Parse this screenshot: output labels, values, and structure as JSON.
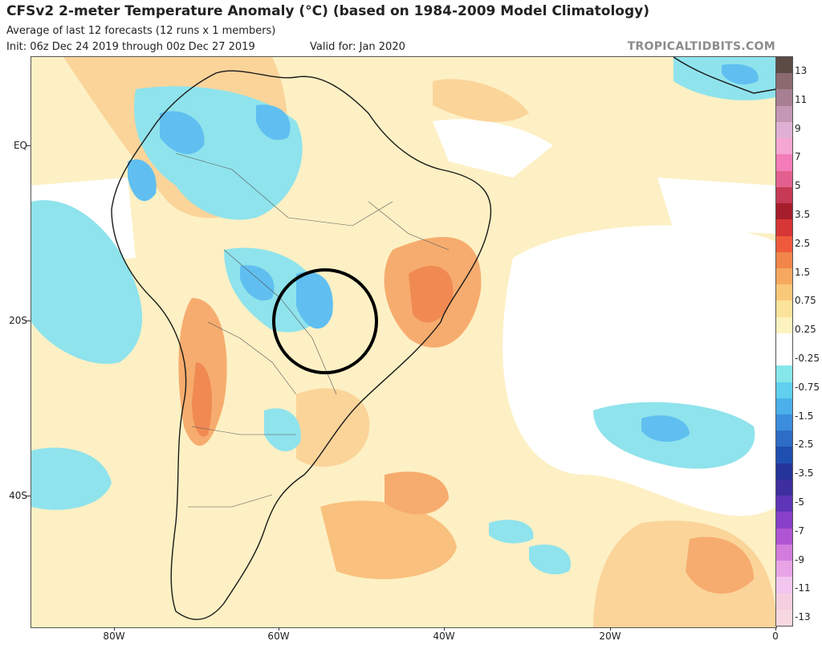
{
  "header": {
    "title": "CFSv2 2-meter Temperature Anomaly (°C) (based on 1984-2009 Model Climatology)",
    "subtitle": "Average of last 12 forecasts (12 runs x 1 members)",
    "init": "Init: 06z Dec 24 2019 through 00z Dec 27 2019",
    "valid": "Valid for: Jan 2020",
    "credit": "TROPICALTIDBITS.COM"
  },
  "map": {
    "lat_labels": [
      "EQ",
      "20S",
      "40S"
    ],
    "lon_labels": [
      "80W",
      "60W",
      "40W",
      "20W",
      "0"
    ],
    "highlight": "circle-around-paraguay-mato-grosso-do-sul"
  },
  "colorbar": {
    "labels": [
      "13",
      "11",
      "9",
      "7",
      "5",
      "3.5",
      "2.5",
      "1.5",
      "0.75",
      "0.25",
      "-0.25",
      "-0.75",
      "-1.5",
      "-2.5",
      "-3.5",
      "-5",
      "-7",
      "-9",
      "-11",
      "-13"
    ],
    "colors": [
      "#5c4a45",
      "#8a6a6e",
      "#a87f92",
      "#c497b4",
      "#e0b0d4",
      "#f6a6d2",
      "#f47cb8",
      "#e3608e",
      "#c63a56",
      "#a61d2b",
      "#d63636",
      "#ef5a3c",
      "#f2864a",
      "#f6a85f",
      "#f9c878",
      "#fce39b",
      "#fdf3c0",
      "#ffffff",
      "#ffffff",
      "#86e7ea",
      "#60d0ee",
      "#4bb0ea",
      "#3c8ddc",
      "#2e6cc6",
      "#1f4fb0",
      "#24349a",
      "#3d2f9e",
      "#5e35b6",
      "#8840c8",
      "#b055d3",
      "#d27cdd",
      "#e7a4e6",
      "#f2c6ef",
      "#f5cfdf",
      "#f7d7e0"
    ]
  }
}
